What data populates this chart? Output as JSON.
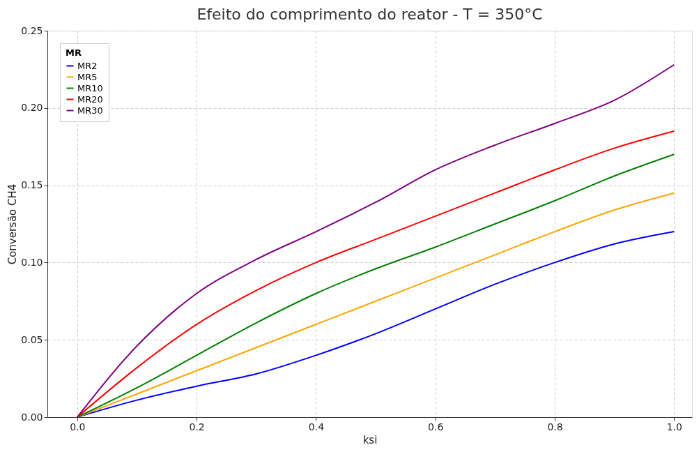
{
  "chart_data": {
    "type": "line",
    "title": "Efeito do comprimento do reator - T = 350°C",
    "xlabel": "ksi",
    "ylabel": "Conversão CH4",
    "legend_title": "MR",
    "legend": "top left",
    "grid": true,
    "line_style": "solid",
    "marker": "none",
    "x": [
      0,
      0.1,
      0.2,
      0.3,
      0.4,
      0.5,
      0.6,
      0.7,
      0.8,
      0.9,
      1.0
    ],
    "xlim": [
      -0.05,
      1.03
    ],
    "ylim": [
      0,
      0.25
    ],
    "xticks": [
      {
        "value": 0,
        "label": "0.0"
      },
      {
        "value": 0.2,
        "label": "0.2"
      },
      {
        "value": 0.4,
        "label": "0.4"
      },
      {
        "value": 0.6,
        "label": "0.6"
      },
      {
        "value": 0.8,
        "label": "0.8"
      },
      {
        "value": 1,
        "label": "1.0"
      }
    ],
    "yticks": [
      {
        "value": 0,
        "label": "0.00"
      },
      {
        "value": 0.05,
        "label": "0.05"
      },
      {
        "value": 0.1,
        "label": "0.10"
      },
      {
        "value": 0.15,
        "label": "0.15"
      },
      {
        "value": 0.2,
        "label": "0.20"
      },
      {
        "value": 0.25,
        "label": "0.25"
      }
    ],
    "series": [
      {
        "name": "MR2",
        "color": "#0000ff",
        "values": [
          0,
          0.011,
          0.02,
          0.028,
          0.04,
          0.054,
          0.07,
          0.086,
          0.1,
          0.112,
          0.12
        ]
      },
      {
        "name": "MR5",
        "color": "#ffa500",
        "values": [
          0,
          0.015,
          0.03,
          0.045,
          0.06,
          0.075,
          0.09,
          0.105,
          0.12,
          0.134,
          0.145
        ]
      },
      {
        "name": "MR10",
        "color": "#008000",
        "values": [
          0,
          0.019,
          0.04,
          0.061,
          0.08,
          0.096,
          0.11,
          0.125,
          0.14,
          0.156,
          0.17
        ]
      },
      {
        "name": "MR20",
        "color": "#ff0000",
        "values": [
          0,
          0.032,
          0.06,
          0.082,
          0.1,
          0.115,
          0.13,
          0.145,
          0.16,
          0.174,
          0.185
        ]
      },
      {
        "name": "MR30",
        "color": "#800080",
        "values": [
          0,
          0.046,
          0.08,
          0.102,
          0.12,
          0.139,
          0.16,
          0.176,
          0.19,
          0.205,
          0.228
        ]
      }
    ]
  }
}
